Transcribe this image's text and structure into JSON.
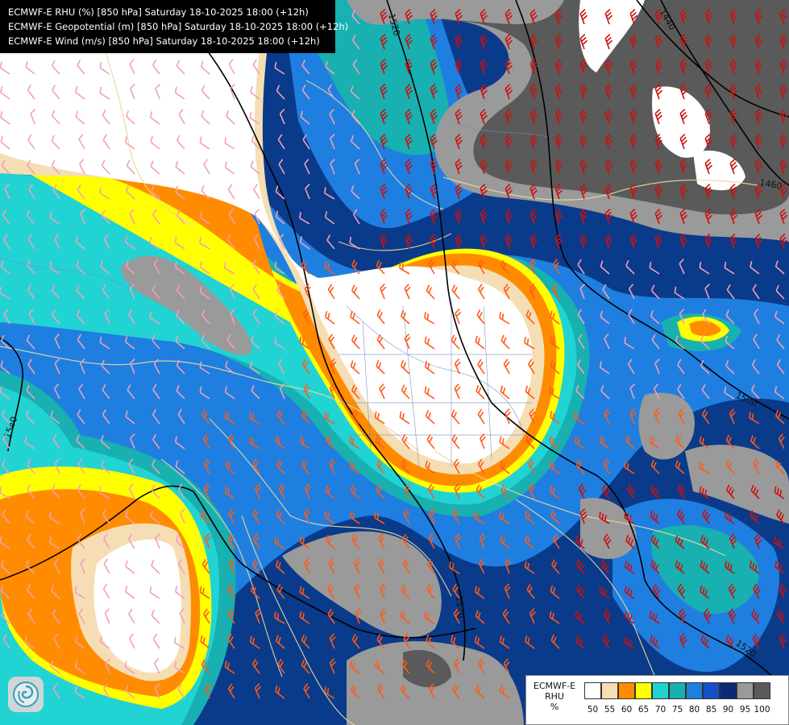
{
  "title_lines": [
    "ECMWF-E RHU (%) [850 hPa] Saturday 18-10-2025 18:00 (+12h)",
    "ECMWF-E Geopotential (m) [850 hPa] Saturday 18-10-2025 18:00 (+12h)",
    "ECMWF-E Wind (m/s) [850 hPa] Saturday 18-10-2025 18:00 (+12h)"
  ],
  "legend": {
    "label_lines": [
      "ECMWF-E",
      "RHU",
      "%"
    ],
    "classes": [
      {
        "value": "50",
        "color": "#ffffff"
      },
      {
        "value": "55",
        "color": "#f5deb3"
      },
      {
        "value": "60",
        "color": "#ff8c00"
      },
      {
        "value": "65",
        "color": "#ffff00"
      },
      {
        "value": "70",
        "color": "#22d3d3"
      },
      {
        "value": "75",
        "color": "#18b0b0"
      },
      {
        "value": "80",
        "color": "#1e7fe0"
      },
      {
        "value": "85",
        "color": "#1450c8"
      },
      {
        "value": "90",
        "color": "#0a2a78"
      },
      {
        "value": "95",
        "color": "#9a9a9a"
      },
      {
        "value": "100",
        "color": "#5a5a5a"
      }
    ]
  },
  "contour_labels": [
    "1520",
    "1440",
    "1460",
    "1500",
    "1540",
    "1520",
    "1520"
  ],
  "logo_icon": "ecmwf-swirl-icon",
  "colors": {
    "background": "#0a3a8a",
    "wind_barb_red": "#cc1010",
    "wind_barb_orange": "#ff5a1a",
    "wind_barb_pink": "#f2a0b8",
    "geopotential_contour": "#000000",
    "borders": "#e8d8a0"
  }
}
